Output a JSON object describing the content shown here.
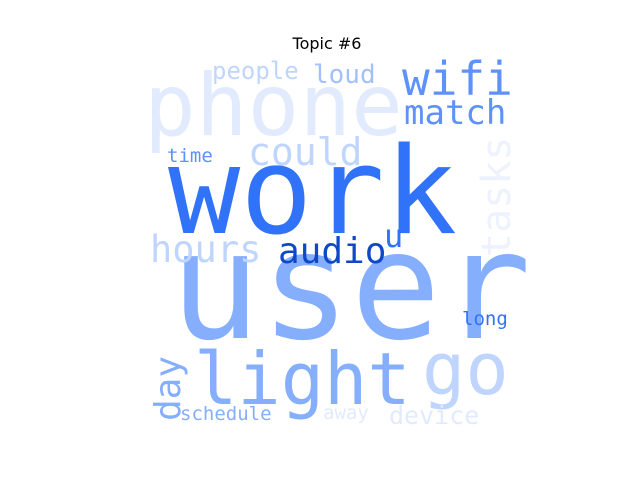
{
  "chart_data": {
    "type": "wordcloud",
    "title": "Topic #6",
    "words": [
      {
        "text": "user",
        "weight": 1.0,
        "color": "#85aefc",
        "rotate": 0
      },
      {
        "text": "work",
        "weight": 0.92,
        "color": "#3173f8",
        "rotate": 0
      },
      {
        "text": "phone",
        "weight": 0.72,
        "color": "#e2ebfd",
        "rotate": 0
      },
      {
        "text": "light",
        "weight": 0.55,
        "color": "#85aefc",
        "rotate": 0
      },
      {
        "text": "go",
        "weight": 0.45,
        "color": "#c0d5fd",
        "rotate": 0
      },
      {
        "text": "wifi",
        "weight": 0.3,
        "color": "#5e92f9",
        "rotate": 0
      },
      {
        "text": "match",
        "weight": 0.27,
        "color": "#5e92f9",
        "rotate": 0
      },
      {
        "text": "could",
        "weight": 0.26,
        "color": "#c0d5fd",
        "rotate": 0
      },
      {
        "text": "hours",
        "weight": 0.26,
        "color": "#c0d5fd",
        "rotate": 0
      },
      {
        "text": "audio",
        "weight": 0.26,
        "color": "#0e47c8",
        "rotate": 0
      },
      {
        "text": "tasks",
        "weight": 0.25,
        "color": "#edf2fe",
        "rotate": -90
      },
      {
        "text": "day",
        "weight": 0.24,
        "color": "#85aefc",
        "rotate": -90
      },
      {
        "text": "u",
        "weight": 0.22,
        "color": "#3173f8",
        "rotate": 0
      },
      {
        "text": "people",
        "weight": 0.18,
        "color": "#c0d5fd",
        "rotate": 0
      },
      {
        "text": "loud",
        "weight": 0.18,
        "color": "#a2c0fc",
        "rotate": 0
      },
      {
        "text": "device",
        "weight": 0.17,
        "color": "#e2ebfd",
        "rotate": 0
      },
      {
        "text": "schedule",
        "weight": 0.14,
        "color": "#85aefc",
        "rotate": 0
      },
      {
        "text": "away",
        "weight": 0.14,
        "color": "#e2ebfd",
        "rotate": 0
      },
      {
        "text": "time",
        "weight": 0.13,
        "color": "#5e92f9",
        "rotate": 0
      },
      {
        "text": "long",
        "weight": 0.13,
        "color": "#3173f8",
        "rotate": 0
      }
    ]
  }
}
